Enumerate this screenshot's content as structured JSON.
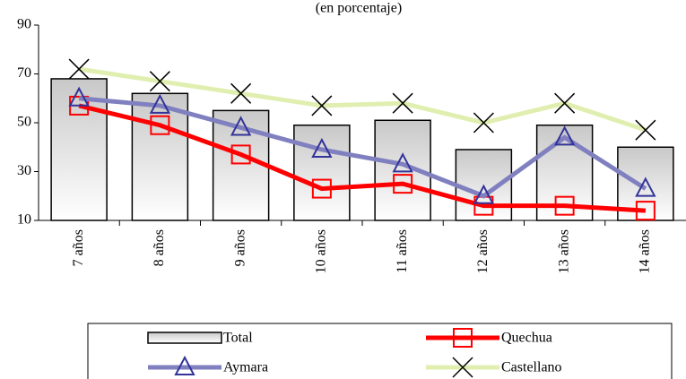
{
  "chart_data": {
    "type": "bar-line",
    "subtitle": "(en porcentaje)",
    "categories": [
      "7 años",
      "8 años",
      "9 años",
      "10 años",
      "11 años",
      "12 años",
      "13 años",
      "14 años"
    ],
    "ylim": [
      10,
      90
    ],
    "yticks": [
      10,
      30,
      50,
      70,
      90
    ],
    "series": [
      {
        "name": "Total",
        "kind": "bar",
        "color": "#d0d0d0",
        "values": [
          68,
          62,
          55,
          49,
          51,
          39,
          49,
          40
        ]
      },
      {
        "name": "Quechua",
        "kind": "line",
        "marker": "square",
        "color": "#ff0000",
        "values": [
          57,
          49,
          37,
          23,
          25,
          16,
          16,
          14
        ]
      },
      {
        "name": "Aymara",
        "kind": "line",
        "marker": "triangle",
        "color": "#8080c0",
        "values": [
          60,
          57,
          48,
          39,
          33,
          20,
          44,
          23
        ]
      },
      {
        "name": "Castellano",
        "kind": "line",
        "marker": "x",
        "color": "#e0efb0",
        "values": [
          72,
          67,
          62,
          57,
          58,
          50,
          58,
          47
        ]
      }
    ]
  }
}
